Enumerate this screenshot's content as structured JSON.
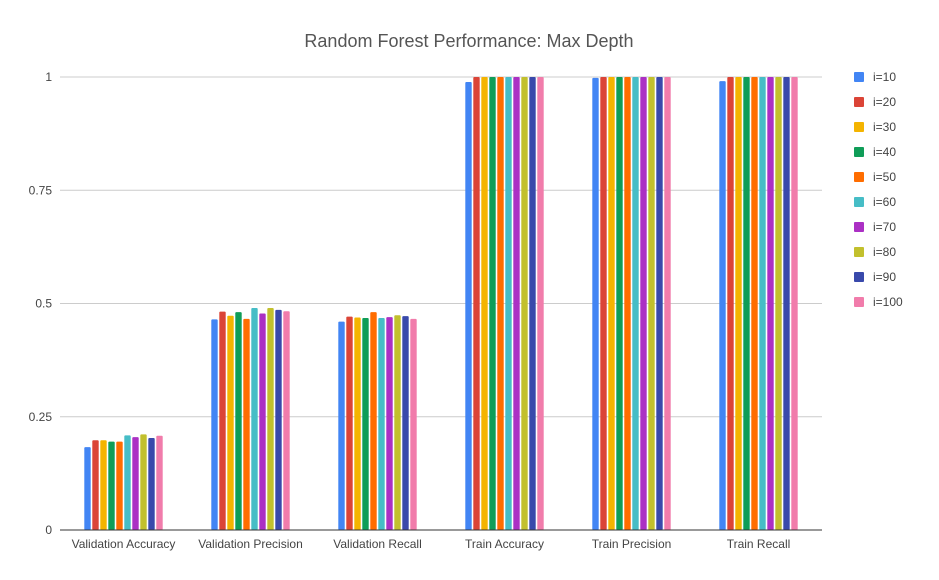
{
  "chart_data": {
    "type": "bar",
    "title": "Random Forest Performance: Max Depth",
    "xlabel": "",
    "ylabel": "",
    "ylim": [
      0,
      1
    ],
    "yticks": [
      "0",
      "0.25",
      "0.5",
      "0.75",
      "1"
    ],
    "grid": true,
    "legend_position": "right",
    "categories": [
      "Validation Accuracy",
      "Validation Precision",
      "Validation Recall",
      "Train Accuracy",
      "Train Precision",
      "Train Recall"
    ],
    "series": [
      {
        "name": "i=10",
        "color": "#4285F4",
        "values": [
          0.183,
          0.465,
          0.46,
          0.989,
          0.998,
          0.991
        ]
      },
      {
        "name": "i=20",
        "color": "#DB4437",
        "values": [
          0.198,
          0.482,
          0.471,
          1.0,
          1.0,
          1.0
        ]
      },
      {
        "name": "i=30",
        "color": "#F4B400",
        "values": [
          0.198,
          0.473,
          0.469,
          1.0,
          1.0,
          1.0
        ]
      },
      {
        "name": "i=40",
        "color": "#0F9D58",
        "values": [
          0.195,
          0.481,
          0.468,
          1.0,
          1.0,
          1.0
        ]
      },
      {
        "name": "i=50",
        "color": "#FF6D00",
        "values": [
          0.195,
          0.466,
          0.481,
          1.0,
          1.0,
          1.0
        ]
      },
      {
        "name": "i=60",
        "color": "#46BDC6",
        "values": [
          0.209,
          0.49,
          0.468,
          1.0,
          1.0,
          1.0
        ]
      },
      {
        "name": "i=70",
        "color": "#AB30C4",
        "values": [
          0.205,
          0.478,
          0.47,
          1.0,
          1.0,
          1.0
        ]
      },
      {
        "name": "i=80",
        "color": "#C2C02D",
        "values": [
          0.211,
          0.49,
          0.474,
          1.0,
          1.0,
          1.0
        ]
      },
      {
        "name": "i=90",
        "color": "#3949AB",
        "values": [
          0.203,
          0.486,
          0.472,
          1.0,
          1.0,
          1.0
        ]
      },
      {
        "name": "i=100",
        "color": "#F17CAB",
        "values": [
          0.208,
          0.483,
          0.466,
          1.0,
          1.0,
          1.0
        ]
      }
    ]
  }
}
